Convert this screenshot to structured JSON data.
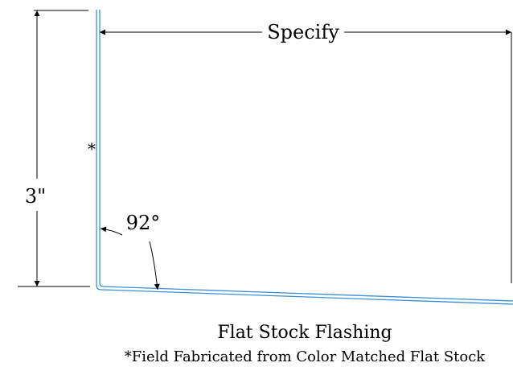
{
  "labels": {
    "width_dimension": "Specify",
    "height_dimension": "3\"",
    "angle": "92°",
    "field_mark": "*"
  },
  "caption": {
    "title": "Flat Stock Flashing",
    "note": "*Field Fabricated from Color Matched Flat Stock"
  },
  "colors": {
    "flashing": "#3b8fd4",
    "dimension_lines": "#000000"
  }
}
